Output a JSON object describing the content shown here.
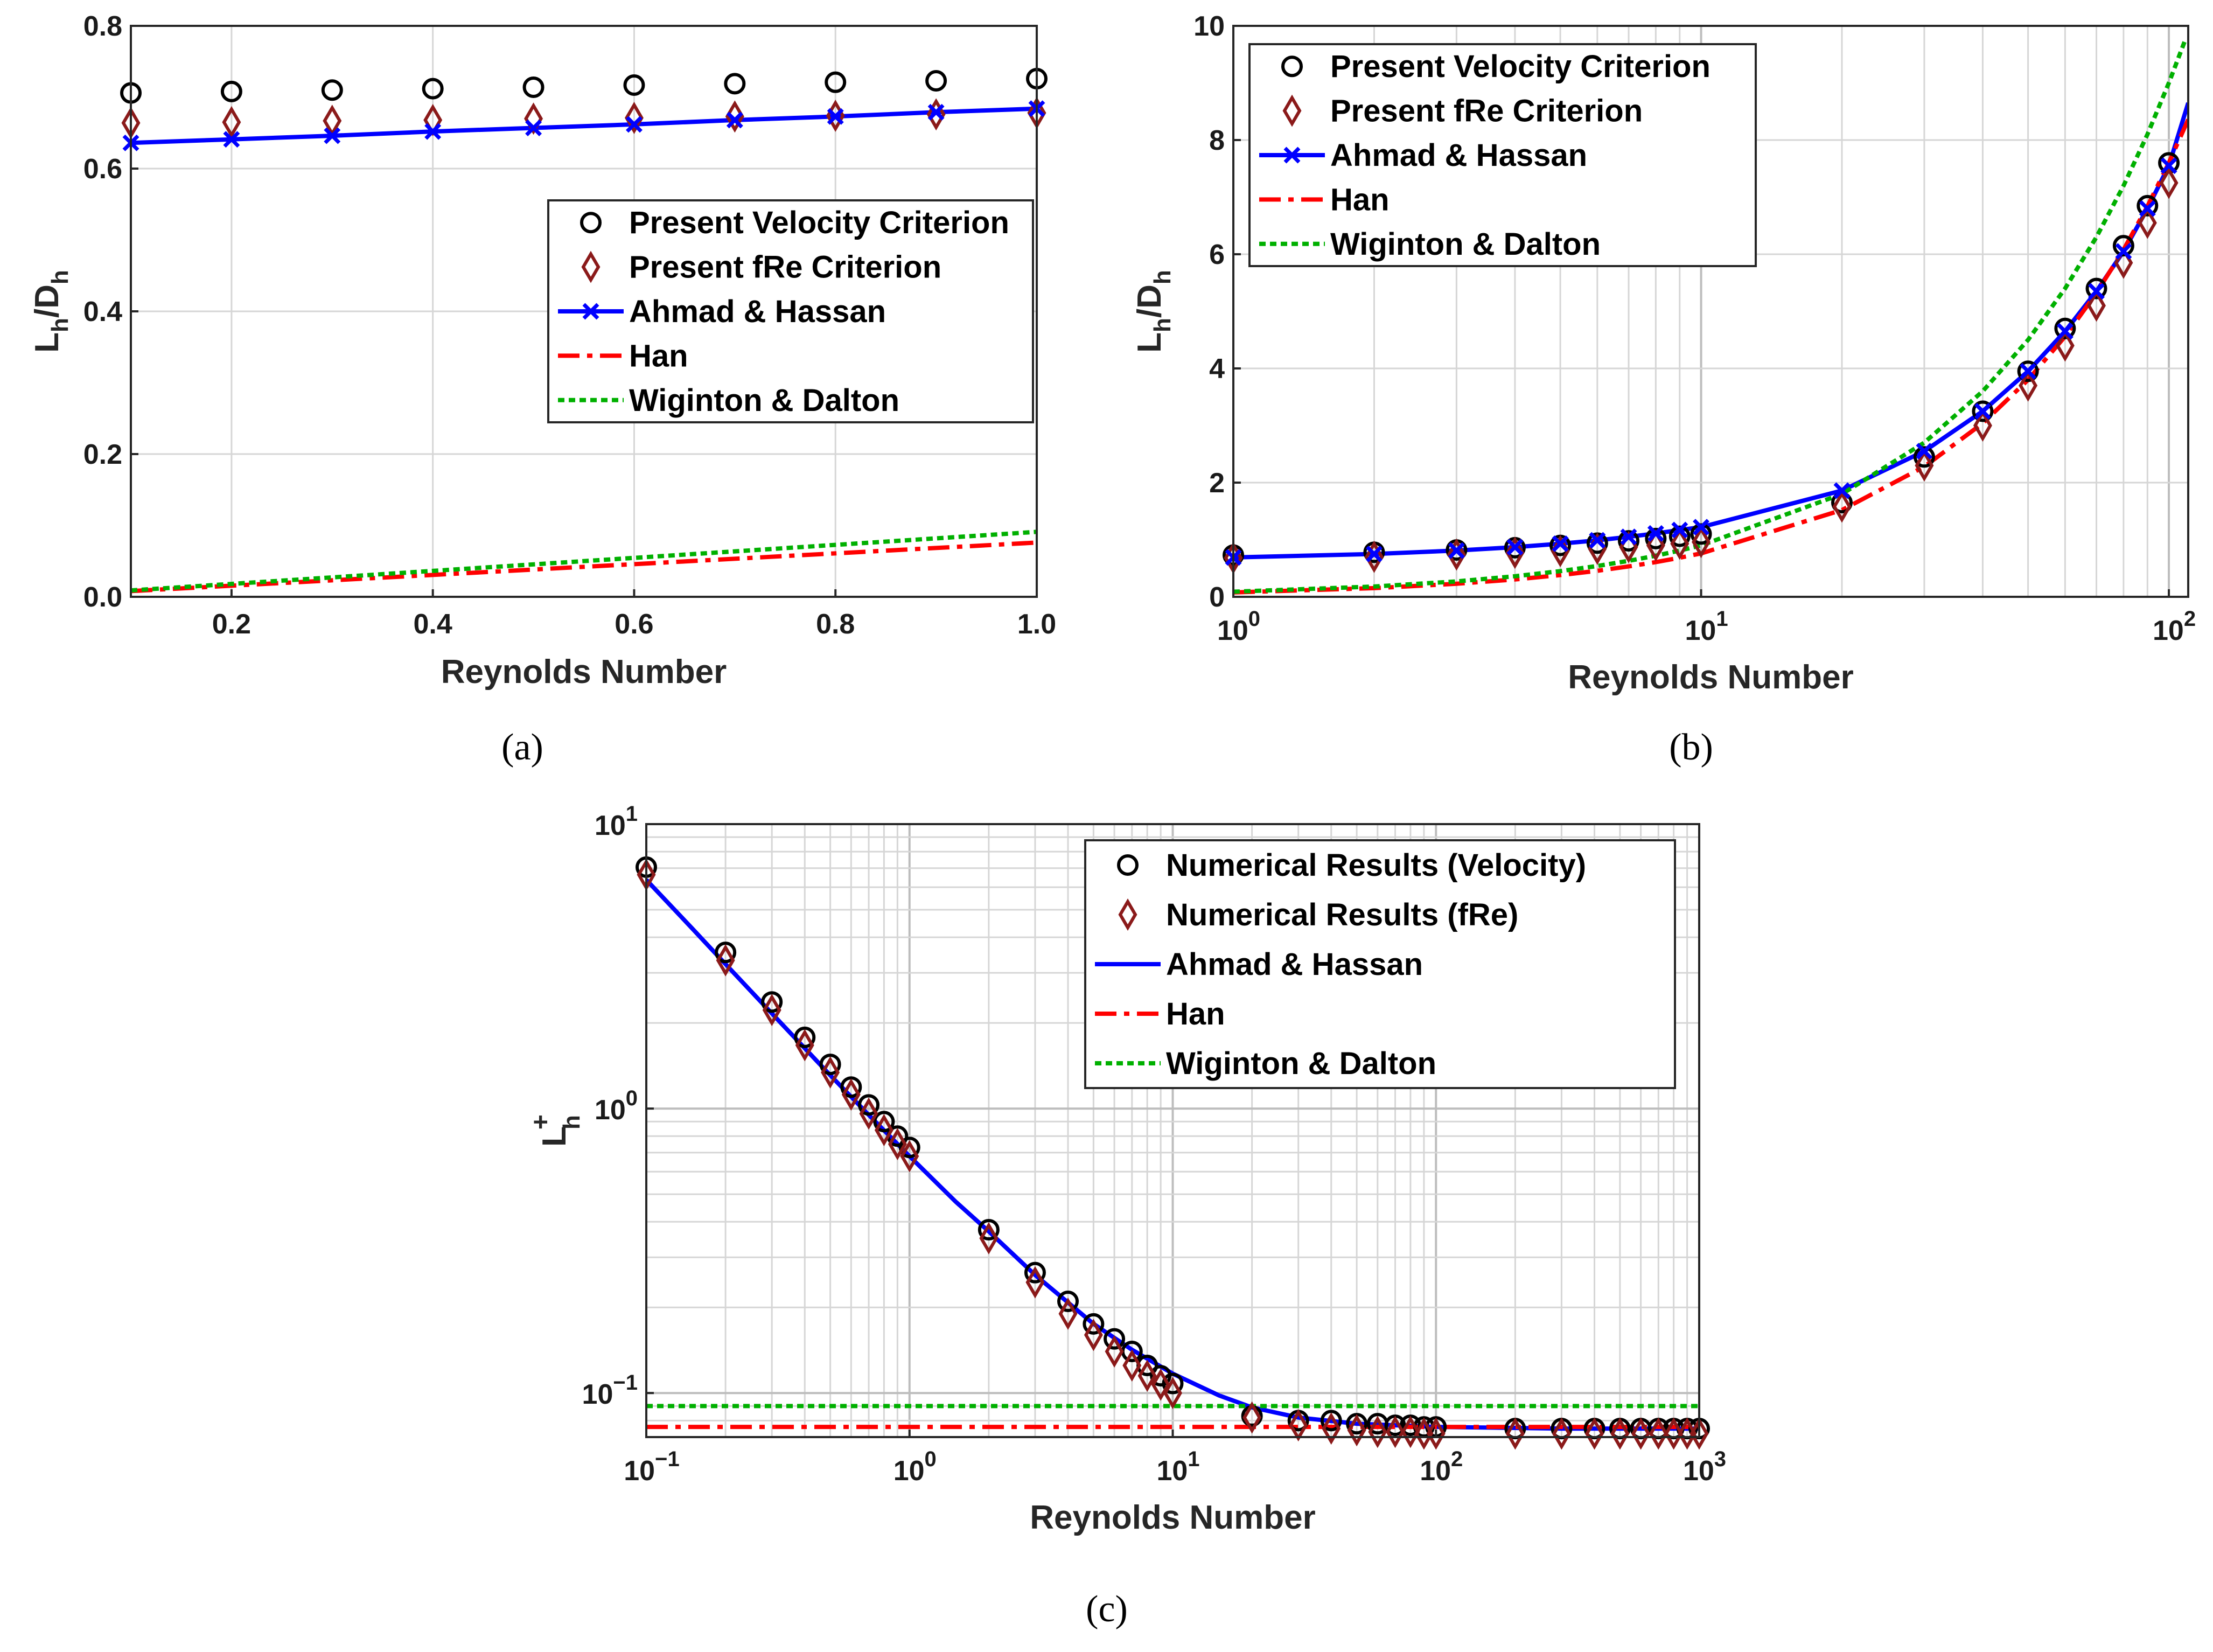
{
  "figure_title": "",
  "colors": {
    "velocity": "#000000",
    "fre": "#8B1A1A",
    "ahmad": "#0000FF",
    "han": "#FF0000",
    "wiginton": "#00B000",
    "grid": "#d0d0d0"
  },
  "chart_data": [
    {
      "id": "a",
      "caption": "(a)",
      "type": "line",
      "xscale": "linear",
      "yscale": "linear",
      "xlabel": "Reynolds Number",
      "ylabel": "L_h/D_h",
      "xlim": [
        0.1,
        1.0
      ],
      "ylim": [
        0,
        0.8
      ],
      "xticks": [
        0.2,
        0.4,
        0.6,
        0.8,
        1.0
      ],
      "xtick_labels": [
        "0.2",
        "0.4",
        "0.6",
        "0.8",
        "1.0"
      ],
      "yticks": [
        0,
        0.2,
        0.4,
        0.6,
        0.8
      ],
      "ytick_labels": [
        "0.0",
        "0.2",
        "0.4",
        "0.6",
        "0.8"
      ],
      "grid": "major",
      "legend_position": "middle-right",
      "series": [
        {
          "key": "velocity",
          "name": "Present Velocity Criterion",
          "style": "circle",
          "x": [
            0.1,
            0.2,
            0.3,
            0.4,
            0.5,
            0.6,
            0.7,
            0.8,
            0.9,
            1.0
          ],
          "y": [
            0.706,
            0.708,
            0.71,
            0.712,
            0.714,
            0.717,
            0.719,
            0.721,
            0.723,
            0.726
          ]
        },
        {
          "key": "fre",
          "name": "Present fRe Criterion",
          "style": "diamond",
          "x": [
            0.1,
            0.2,
            0.3,
            0.4,
            0.5,
            0.6,
            0.7,
            0.8,
            0.9,
            1.0
          ],
          "y": [
            0.664,
            0.665,
            0.667,
            0.668,
            0.67,
            0.671,
            0.673,
            0.674,
            0.676,
            0.678
          ]
        },
        {
          "key": "ahmad",
          "name": "Ahmad & Hassan",
          "style": "line-x",
          "x": [
            0.1,
            0.2,
            0.3,
            0.4,
            0.5,
            0.6,
            0.7,
            0.8,
            0.9,
            1.0
          ],
          "y": [
            0.636,
            0.641,
            0.646,
            0.652,
            0.657,
            0.662,
            0.668,
            0.673,
            0.679,
            0.684
          ]
        },
        {
          "key": "han",
          "name": "Han",
          "style": "dashdot",
          "x": [
            0.1,
            1.0
          ],
          "y": [
            0.008,
            0.076
          ]
        },
        {
          "key": "wiginton",
          "name": "Wiginton & Dalton",
          "style": "dotted",
          "x": [
            0.1,
            1.0
          ],
          "y": [
            0.009,
            0.091
          ]
        }
      ]
    },
    {
      "id": "b",
      "caption": "(b)",
      "type": "line",
      "xscale": "log",
      "yscale": "linear",
      "xlabel": "Reynolds Number",
      "ylabel": "L_h/D_h",
      "xlim": [
        1,
        110
      ],
      "ylim": [
        0,
        10
      ],
      "xticks": [
        1,
        10,
        100
      ],
      "xtick_labels": [
        {
          "base": "10",
          "exp": "0"
        },
        {
          "base": "10",
          "exp": "1"
        },
        {
          "base": "10",
          "exp": "2"
        }
      ],
      "yticks": [
        0,
        2,
        4,
        6,
        8,
        10
      ],
      "ytick_labels": [
        "0",
        "2",
        "4",
        "6",
        "8",
        "10"
      ],
      "grid": "major+minor",
      "legend_position": "top-left",
      "series": [
        {
          "key": "velocity",
          "name": "Present Velocity Criterion",
          "style": "circle",
          "x": [
            1,
            2,
            3,
            4,
            5,
            6,
            7,
            8,
            9,
            10,
            20,
            30,
            40,
            50,
            60,
            70,
            80,
            90,
            100
          ],
          "y": [
            0.73,
            0.78,
            0.82,
            0.86,
            0.9,
            0.94,
            0.98,
            1.02,
            1.06,
            1.1,
            1.65,
            2.45,
            3.25,
            3.95,
            4.7,
            5.4,
            6.15,
            6.85,
            7.6
          ]
        },
        {
          "key": "fre",
          "name": "Present fRe Criterion",
          "style": "diamond",
          "x": [
            1,
            2,
            3,
            4,
            5,
            6,
            7,
            8,
            9,
            10,
            20,
            30,
            40,
            50,
            60,
            70,
            80,
            90,
            100
          ],
          "y": [
            0.68,
            0.7,
            0.74,
            0.77,
            0.8,
            0.84,
            0.87,
            0.9,
            0.93,
            0.96,
            1.58,
            2.3,
            3.0,
            3.7,
            4.4,
            5.1,
            5.85,
            6.55,
            7.25
          ]
        },
        {
          "key": "ahmad",
          "name": "Ahmad & Hassan",
          "style": "line-x",
          "x": [
            1,
            2,
            3,
            4,
            5,
            6,
            7,
            8,
            9,
            10,
            20,
            30,
            40,
            50,
            60,
            70,
            80,
            90,
            100,
            110
          ],
          "y": [
            0.69,
            0.75,
            0.81,
            0.87,
            0.93,
            0.99,
            1.05,
            1.11,
            1.17,
            1.22,
            1.86,
            2.55,
            3.25,
            3.95,
            4.65,
            5.35,
            6.05,
            6.8,
            7.55,
            8.65
          ]
        },
        {
          "key": "han",
          "name": "Han",
          "style": "dashdot",
          "x": [
            1,
            2,
            3,
            4,
            5,
            6,
            7,
            8,
            9,
            10,
            20,
            30,
            40,
            50,
            60,
            70,
            80,
            90,
            100,
            110
          ],
          "y": [
            0.076,
            0.152,
            0.228,
            0.304,
            0.38,
            0.456,
            0.532,
            0.608,
            0.684,
            0.76,
            1.52,
            2.28,
            3.04,
            3.8,
            4.56,
            5.32,
            6.08,
            6.84,
            7.6,
            8.36
          ]
        },
        {
          "key": "wiginton",
          "name": "Wiginton & Dalton",
          "style": "dotted",
          "x": [
            1,
            2,
            3,
            4,
            5,
            6,
            7,
            8,
            9,
            10,
            20,
            30,
            40,
            50,
            60,
            70,
            80,
            90,
            100,
            108
          ],
          "y": [
            0.09,
            0.18,
            0.27,
            0.36,
            0.45,
            0.54,
            0.63,
            0.72,
            0.81,
            0.9,
            1.8,
            2.7,
            3.6,
            4.5,
            5.4,
            6.3,
            7.2,
            8.1,
            9.0,
            9.72
          ]
        }
      ]
    },
    {
      "id": "c",
      "caption": "(c)",
      "type": "line",
      "xscale": "log",
      "yscale": "log",
      "xlabel": "Reynolds Number",
      "ylabel": "L_h^+",
      "xlim": [
        0.1,
        1000
      ],
      "ylim": [
        0.07,
        10
      ],
      "xticks": [
        0.1,
        1,
        10,
        100,
        1000
      ],
      "xtick_labels": [
        {
          "base": "10",
          "exp": "−1"
        },
        {
          "base": "10",
          "exp": "0"
        },
        {
          "base": "10",
          "exp": "1"
        },
        {
          "base": "10",
          "exp": "2"
        },
        {
          "base": "10",
          "exp": "3"
        }
      ],
      "yticks": [
        0.1,
        1,
        10
      ],
      "ytick_labels": [
        {
          "base": "10",
          "exp": "−1"
        },
        {
          "base": "10",
          "exp": "0"
        },
        {
          "base": "10",
          "exp": "1"
        }
      ],
      "grid": "major+minor",
      "legend_position": "top-right",
      "series": [
        {
          "key": "velocity",
          "name": "Numerical Results (Velocity)",
          "style": "circle",
          "x": [
            0.1,
            0.2,
            0.3,
            0.4,
            0.5,
            0.6,
            0.7,
            0.8,
            0.9,
            1,
            2,
            3,
            4,
            5,
            6,
            7,
            8,
            9,
            10,
            20,
            30,
            40,
            50,
            60,
            70,
            80,
            90,
            100,
            200,
            300,
            400,
            500,
            600,
            700,
            800,
            900,
            1000
          ],
          "y": [
            7.06,
            3.54,
            2.37,
            1.78,
            1.43,
            1.19,
            1.03,
            0.9,
            0.8,
            0.73,
            0.375,
            0.265,
            0.21,
            0.175,
            0.155,
            0.14,
            0.125,
            0.115,
            0.108,
            0.083,
            0.08,
            0.08,
            0.078,
            0.078,
            0.077,
            0.077,
            0.076,
            0.076,
            0.075,
            0.075,
            0.075,
            0.075,
            0.075,
            0.075,
            0.075,
            0.075,
            0.075
          ]
        },
        {
          "key": "fre",
          "name": "Numerical Results (fRe)",
          "style": "diamond",
          "x": [
            0.1,
            0.2,
            0.3,
            0.4,
            0.5,
            0.6,
            0.7,
            0.8,
            0.9,
            1,
            2,
            3,
            4,
            5,
            6,
            7,
            8,
            9,
            10,
            20,
            30,
            40,
            50,
            60,
            70,
            80,
            90,
            100,
            200,
            300,
            400,
            500,
            600,
            700,
            800,
            900,
            1000
          ],
          "y": [
            6.64,
            3.32,
            2.22,
            1.67,
            1.34,
            1.12,
            0.96,
            0.84,
            0.75,
            0.68,
            0.35,
            0.245,
            0.19,
            0.16,
            0.14,
            0.125,
            0.115,
            0.107,
            0.1,
            0.082,
            0.077,
            0.075,
            0.074,
            0.073,
            0.073,
            0.073,
            0.072,
            0.072,
            0.072,
            0.072,
            0.072,
            0.072,
            0.072,
            0.072,
            0.072,
            0.072,
            0.072
          ]
        },
        {
          "key": "ahmad",
          "name": "Ahmad & Hassan",
          "style": "line",
          "x": [
            0.1,
            0.15,
            0.2,
            0.3,
            0.5,
            0.7,
            1,
            1.5,
            2,
            3,
            5,
            7,
            10,
            15,
            20,
            30,
            50,
            100,
            300,
            1000
          ],
          "y": [
            6.37,
            4.28,
            3.22,
            2.16,
            1.31,
            0.95,
            0.68,
            0.47,
            0.37,
            0.26,
            0.175,
            0.142,
            0.117,
            0.098,
            0.089,
            0.082,
            0.078,
            0.076,
            0.075,
            0.075
          ]
        },
        {
          "key": "han",
          "name": "Han",
          "style": "dashdot",
          "x": [
            0.1,
            1000
          ],
          "y": [
            0.076,
            0.076
          ]
        },
        {
          "key": "wiginton",
          "name": "Wiginton & Dalton",
          "style": "dotted",
          "x": [
            0.1,
            1000
          ],
          "y": [
            0.09,
            0.09
          ]
        }
      ]
    }
  ]
}
